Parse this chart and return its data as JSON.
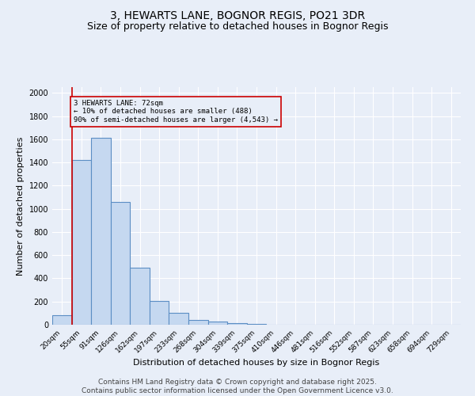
{
  "title1": "3, HEWARTS LANE, BOGNOR REGIS, PO21 3DR",
  "title2": "Size of property relative to detached houses in Bognor Regis",
  "xlabel": "Distribution of detached houses by size in Bognor Regis",
  "ylabel": "Number of detached properties",
  "categories": [
    "20sqm",
    "55sqm",
    "91sqm",
    "126sqm",
    "162sqm",
    "197sqm",
    "233sqm",
    "268sqm",
    "304sqm",
    "339sqm",
    "375sqm",
    "410sqm",
    "446sqm",
    "481sqm",
    "516sqm",
    "552sqm",
    "587sqm",
    "623sqm",
    "658sqm",
    "694sqm",
    "729sqm"
  ],
  "values": [
    80,
    1420,
    1610,
    1060,
    490,
    205,
    105,
    43,
    25,
    12,
    8,
    0,
    0,
    0,
    0,
    0,
    0,
    0,
    0,
    0,
    0
  ],
  "bar_color": "#c5d8f0",
  "bar_edge_color": "#5b8ec4",
  "background_color": "#e8eef8",
  "grid_color": "#ffffff",
  "vline_color": "#cc0000",
  "vline_pos": 0.5,
  "annotation_text": "3 HEWARTS LANE: 72sqm\n← 10% of detached houses are smaller (488)\n90% of semi-detached houses are larger (4,543) →",
  "annotation_box_color": "#cc0000",
  "ylim": [
    0,
    2050
  ],
  "yticks": [
    0,
    200,
    400,
    600,
    800,
    1000,
    1200,
    1400,
    1600,
    1800,
    2000
  ],
  "footnote1": "Contains HM Land Registry data © Crown copyright and database right 2025.",
  "footnote2": "Contains public sector information licensed under the Open Government Licence v3.0.",
  "title1_fontsize": 10,
  "title2_fontsize": 9,
  "label_fontsize": 8,
  "tick_fontsize": 7,
  "footnote_fontsize": 6.5
}
